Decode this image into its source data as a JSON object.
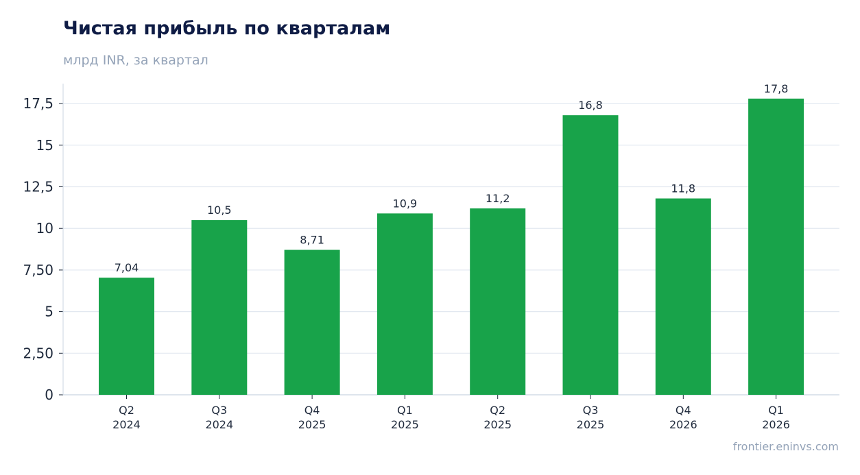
{
  "header": {
    "title": "Чистая прибыль по кварталам",
    "subtitle": "млрд INR, за квартал"
  },
  "footer": {
    "source": "frontier.eninvs.com"
  },
  "colors": {
    "bar": "#18a34a",
    "grid": "#e2e8f0",
    "axis": "#cbd5e1",
    "title": "#0f1c45",
    "muted": "#94a3b8"
  },
  "chart_data": {
    "type": "bar",
    "title": "Чистая прибыль по кварталам",
    "subtitle": "млрд INR, за квартал",
    "categories": [
      [
        "Q2",
        "2024"
      ],
      [
        "Q3",
        "2024"
      ],
      [
        "Q4",
        "2025"
      ],
      [
        "Q1",
        "2025"
      ],
      [
        "Q2",
        "2025"
      ],
      [
        "Q3",
        "2025"
      ],
      [
        "Q4",
        "2026"
      ],
      [
        "Q1",
        "2026"
      ]
    ],
    "values": [
      7.04,
      10.5,
      8.71,
      10.9,
      11.2,
      16.8,
      11.8,
      17.8
    ],
    "value_labels": [
      "7,04",
      "10,5",
      "8,71",
      "10,9",
      "11,2",
      "16,8",
      "11,8",
      "17,8"
    ],
    "yticks": [
      0,
      2.5,
      5,
      7.5,
      10,
      12.5,
      15,
      17.5
    ],
    "ytick_labels": [
      "0",
      "2,50",
      "5",
      "7,50",
      "10",
      "12,5",
      "15",
      "17,5"
    ],
    "ylim": [
      0,
      18.7
    ],
    "grid": true,
    "legend": "none"
  }
}
